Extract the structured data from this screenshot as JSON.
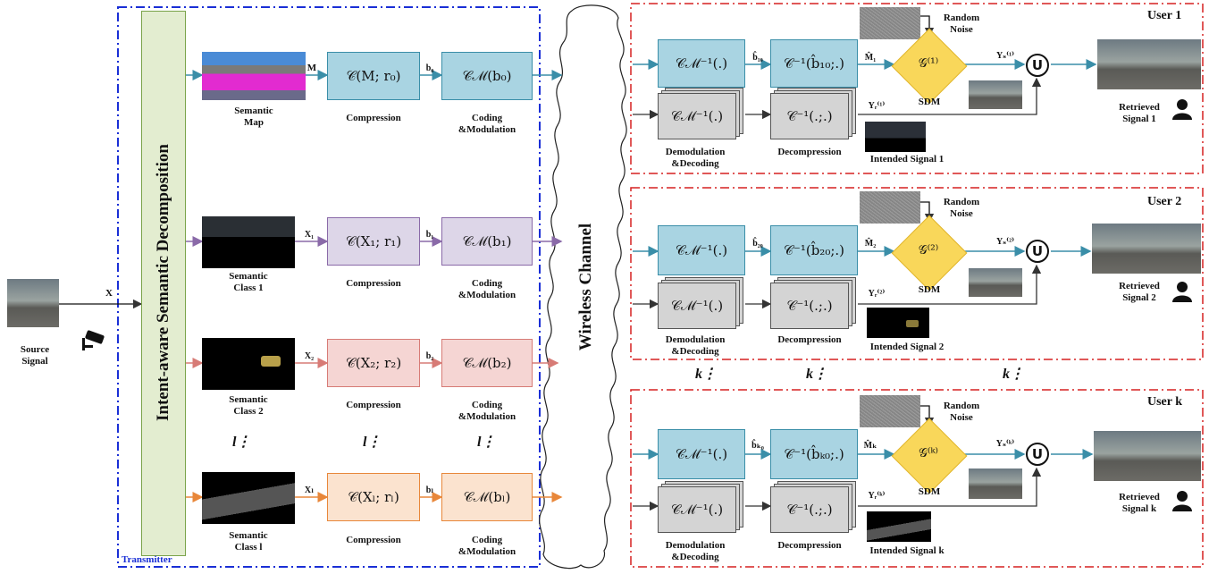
{
  "source": {
    "label_line1": "Source",
    "label_line2": "Signal",
    "signal_var": "X"
  },
  "transmitter": {
    "label": "Transmitter",
    "decomp_label": "Intent-aware Semantic Decomposition"
  },
  "channel": {
    "label": "Wireless Channel"
  },
  "branches": [
    {
      "img_line1": "Semantic",
      "img_line2": "Map",
      "in_var": "M",
      "compress_box": "𝒞(M; r₀)",
      "coded_var": "b₀",
      "cm_box": "𝒞ℳ(b₀)"
    },
    {
      "img_line1": "Semantic",
      "img_line2": "Class 1",
      "in_var": "X₁",
      "compress_box": "𝒞(X₁; r₁)",
      "coded_var": "b₁",
      "cm_box": "𝒞ℳ(b₁)"
    },
    {
      "img_line1": "Semantic",
      "img_line2": "Class 2",
      "in_var": "X₂",
      "compress_box": "𝒞(X₂; r₂)",
      "coded_var": "b₂",
      "cm_box": "𝒞ℳ(b₂)"
    },
    {
      "img_line1": "Semantic",
      "img_line2": "Class l",
      "in_var": "Xₗ",
      "compress_box": "𝒞(Xₗ; rₗ)",
      "coded_var": "bₗ",
      "cm_box": "𝒞ℳ(bₗ)"
    }
  ],
  "tx_labels": {
    "compression": "Compression",
    "coding_line1": "Coding",
    "coding_line2": "&Modulation",
    "l_dots": "l"
  },
  "users": [
    {
      "title": "User 1",
      "cm_inv": "𝒞ℳ⁻¹(.)",
      "bhat": "b̂₁₀",
      "c_inv": "𝒞⁻¹(b̂₁₀;.)",
      "mhat": "M̂₁",
      "sdm_func": "𝒢⁽¹⁾",
      "y_s": "Yₛ⁽¹⁾",
      "y_r": "Yᵣ⁽¹⁾",
      "intended": "Intended Signal 1",
      "retrieved_line1": "Retrieved",
      "retrieved_line2": "Signal 1"
    },
    {
      "title": "User 2",
      "cm_inv": "𝒞ℳ⁻¹(.)",
      "bhat": "b̂₂₀",
      "c_inv": "𝒞⁻¹(b̂₂₀;.)",
      "mhat": "M̂₂",
      "sdm_func": "𝒢⁽²⁾",
      "y_s": "Yₛ⁽²⁾",
      "y_r": "Yᵣ⁽²⁾",
      "intended": "Intended Signal 2",
      "retrieved_line1": "Retrieved",
      "retrieved_line2": "Signal 2"
    },
    {
      "title": "User k",
      "cm_inv": "𝒞ℳ⁻¹(.)",
      "bhat": "b̂ₖ₀",
      "c_inv": "𝒞⁻¹(b̂ₖ₀;.)",
      "mhat": "M̂ₖ",
      "sdm_func": "𝒢⁽ᵏ⁾",
      "y_s": "Yₛ⁽ᵏ⁾",
      "y_r": "Yᵣ⁽ᵏ⁾",
      "intended": "Intended Signal k",
      "retrieved_line1": "Retrieved",
      "retrieved_line2": "Signal k"
    }
  ],
  "rx_labels": {
    "demod_line1": "Demodulation",
    "demod_line2": "&Decoding",
    "decompression": "Decompression",
    "stack_cm_inv": "𝒞ℳ⁻¹(.)",
    "stack_c_inv": "𝒞⁻¹(.;.)",
    "noise_line1": "Random",
    "noise_line2": "Noise",
    "sdm": "SDM",
    "union": "U",
    "k_dots": "k"
  },
  "colors": {
    "tx_border": "#1a2fd6",
    "rx_border": "#d62020",
    "arrow_blue": "#3a8ea8",
    "arrow_purple": "#8a6aa8",
    "arrow_pink": "#d77b76",
    "arrow_orange": "#e8873a",
    "decomp_fill": "#e3edd0"
  }
}
